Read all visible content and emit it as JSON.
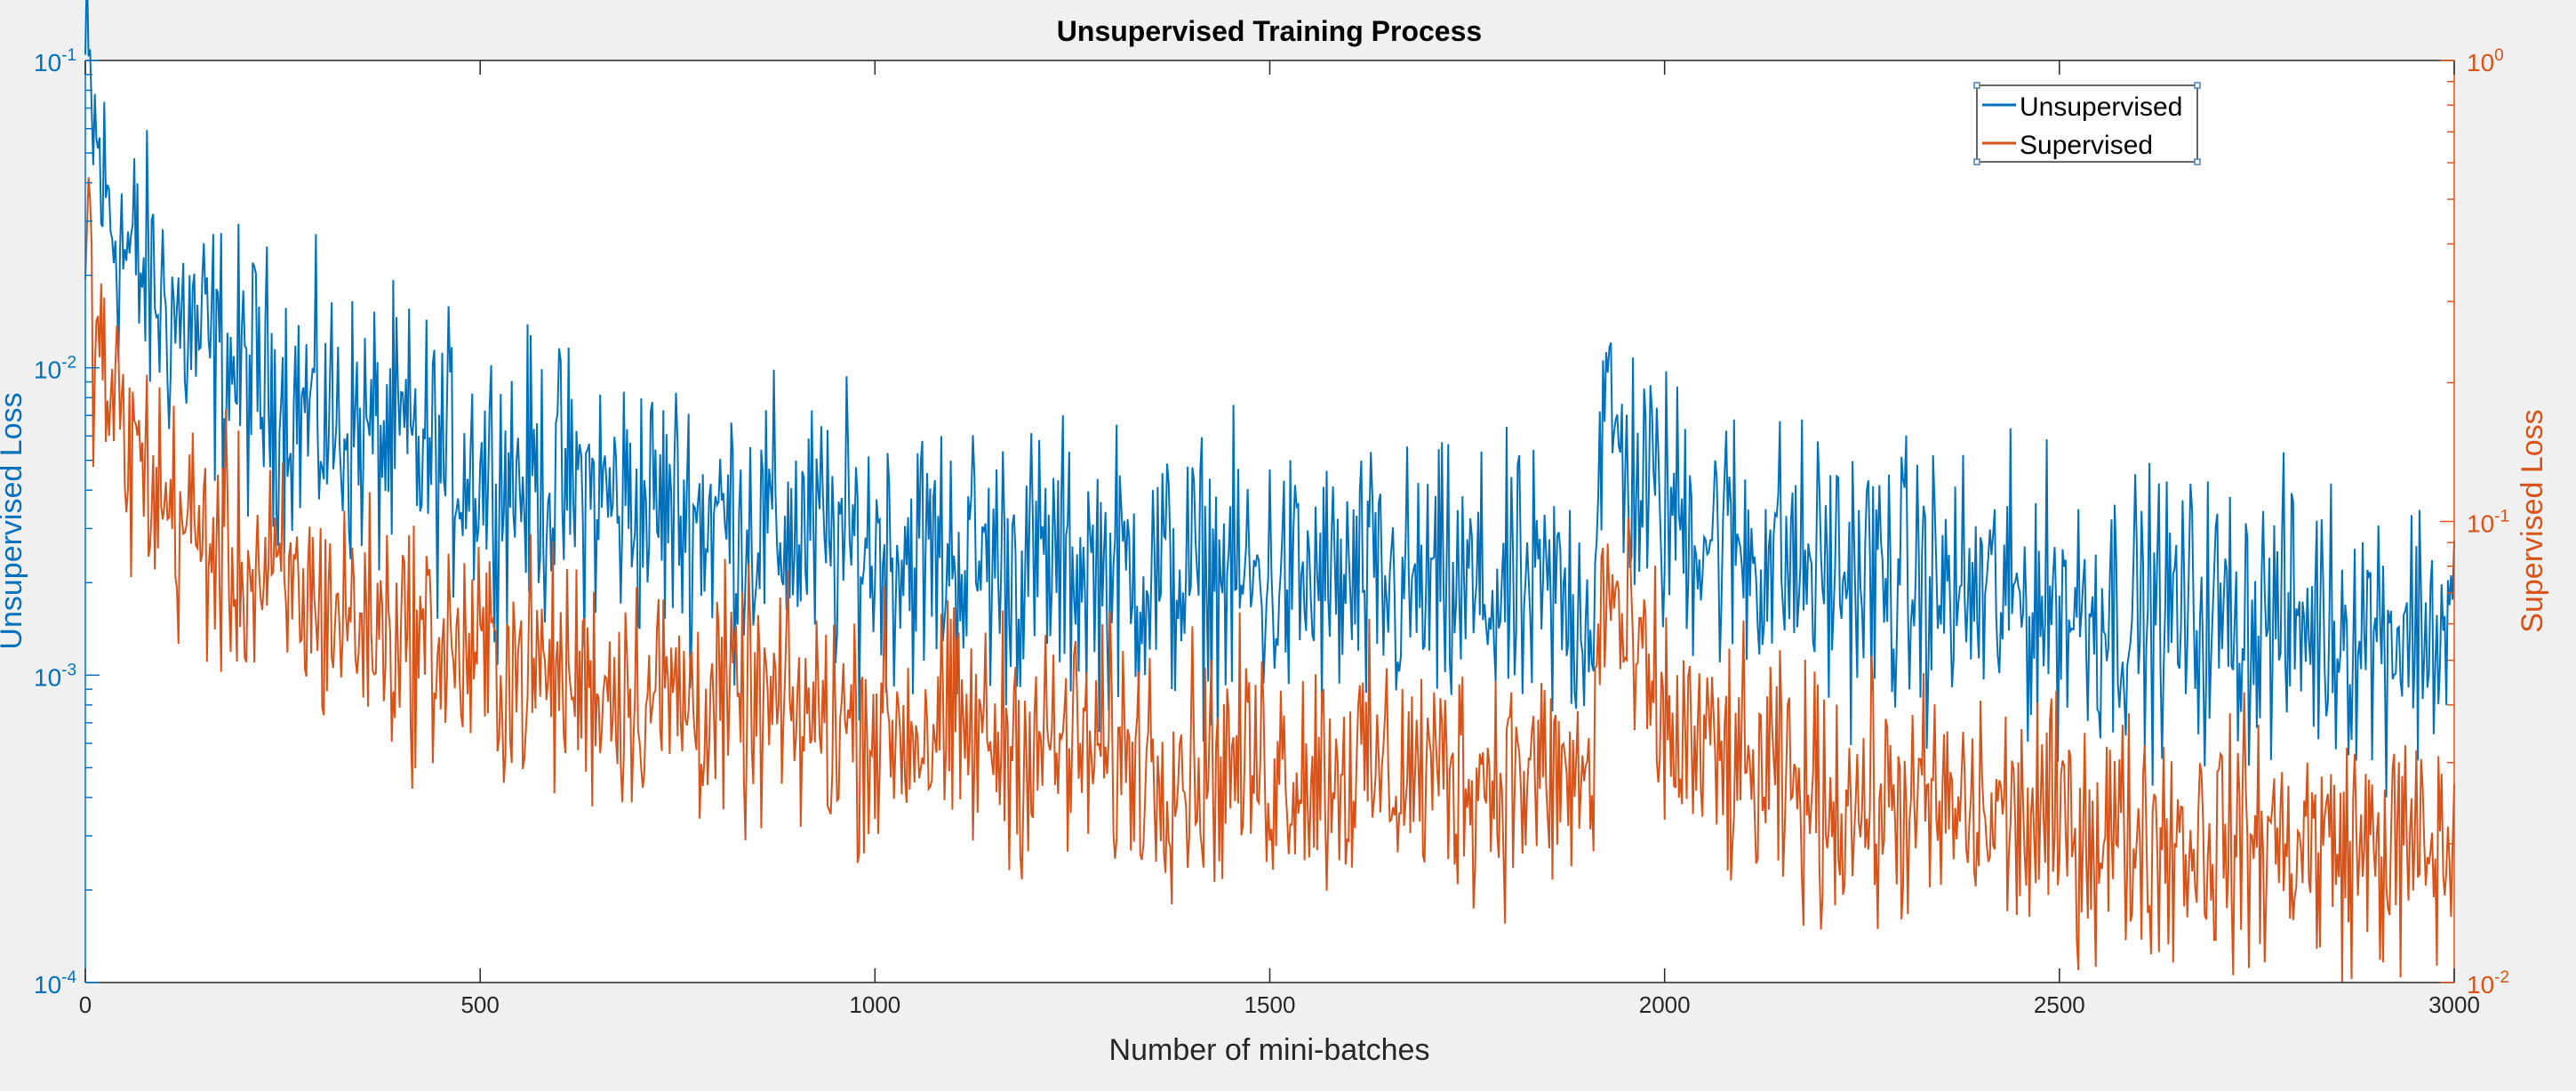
{
  "chart_data": {
    "type": "line",
    "title": "Unsupervised Training Process",
    "xlabel": "Number of mini-batches",
    "xlim": [
      0,
      3000
    ],
    "x_ticks": [
      0,
      500,
      1000,
      1500,
      2000,
      2500,
      3000
    ],
    "x_tick_labels": [
      "0",
      "500",
      "1000",
      "1500",
      "2000",
      "2500",
      "3000"
    ],
    "grid": false,
    "legend_placement": "top-right",
    "y_left": {
      "label": "Unsupervised Loss",
      "scale": "log",
      "lim": [
        0.0001,
        0.1
      ],
      "tick_labels": [
        {
          "base": "10",
          "exp": "-4",
          "value": 0.0001
        },
        {
          "base": "10",
          "exp": "-3",
          "value": 0.001
        },
        {
          "base": "10",
          "exp": "-2",
          "value": 0.01
        },
        {
          "base": "10",
          "exp": "-1",
          "value": 0.1
        }
      ],
      "color": "#0072BD"
    },
    "y_right": {
      "label": "Supervised Loss",
      "scale": "log",
      "lim": [
        0.01,
        1
      ],
      "tick_labels": [
        {
          "base": "10",
          "exp": "-2",
          "value": 0.01
        },
        {
          "base": "10",
          "exp": "-1",
          "value": 0.1
        },
        {
          "base": "10",
          "exp": "0",
          "value": 1
        }
      ],
      "color": "#D95319"
    },
    "series": [
      {
        "name": "Unsupervised",
        "axis": "left",
        "color": "#0072BD",
        "x": [
          0,
          10,
          25,
          50,
          100,
          150,
          200,
          300,
          400,
          500,
          700,
          900,
          1000,
          1200,
          1400,
          1600,
          1800,
          1910,
          1920,
          1930,
          1950,
          2000,
          2100,
          2200,
          2400,
          2600,
          2800,
          3000
        ],
        "y": [
          0.095,
          0.06,
          0.035,
          0.024,
          0.016,
          0.012,
          0.0095,
          0.0068,
          0.0056,
          0.0047,
          0.0036,
          0.0029,
          0.0026,
          0.0023,
          0.0021,
          0.0019,
          0.0018,
          0.0017,
          0.007,
          0.0065,
          0.0048,
          0.0035,
          0.0026,
          0.0022,
          0.0018,
          0.0016,
          0.0015,
          0.0014
        ]
      },
      {
        "name": "Supervised",
        "axis": "right",
        "color": "#D95319",
        "x": [
          0,
          10,
          25,
          50,
          100,
          150,
          200,
          300,
          400,
          500,
          700,
          900,
          1000,
          1200,
          1400,
          1600,
          1800,
          1910,
          1920,
          1930,
          1950,
          2000,
          2100,
          2200,
          2400,
          2600,
          2800,
          3000
        ],
        "y": [
          0.45,
          0.28,
          0.2,
          0.15,
          0.11,
          0.09,
          0.078,
          0.065,
          0.057,
          0.05,
          0.043,
          0.038,
          0.036,
          0.033,
          0.03,
          0.029,
          0.028,
          0.027,
          0.075,
          0.07,
          0.055,
          0.035,
          0.028,
          0.025,
          0.023,
          0.021,
          0.02,
          0.019
        ]
      }
    ]
  }
}
